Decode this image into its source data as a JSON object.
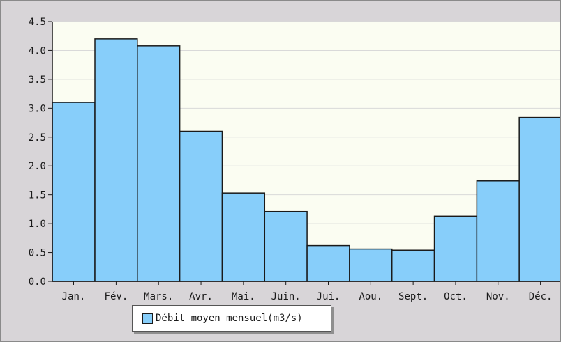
{
  "chart_data": {
    "type": "bar",
    "categories": [
      "Jan.",
      "Fév.",
      "Mars.",
      "Avr.",
      "Mai.",
      "Juin.",
      "Jui.",
      "Aou.",
      "Sept.",
      "Oct.",
      "Nov.",
      "Déc."
    ],
    "series": [
      {
        "name": "Débit moyen mensuel(m3/s)",
        "values": [
          3.1,
          4.2,
          4.08,
          2.6,
          1.53,
          1.21,
          0.62,
          0.56,
          0.54,
          1.13,
          1.74,
          2.84
        ]
      }
    ],
    "yticks": [
      "0.0",
      "0.5",
      "1.0",
      "1.5",
      "2.0",
      "2.5",
      "3.0",
      "3.5",
      "4.0",
      "4.5"
    ],
    "ylim": [
      0,
      4.5
    ],
    "title": "",
    "xlabel": "",
    "ylabel": "",
    "grid": true,
    "legend_position": "bottom-left",
    "colors": {
      "bar_fill": "#87cefa",
      "bar_stroke": "#1a1a1a",
      "plot_background": "#fbfdf2",
      "frame_background": "#d8d5d8",
      "grid": "#d9d9d9"
    }
  }
}
